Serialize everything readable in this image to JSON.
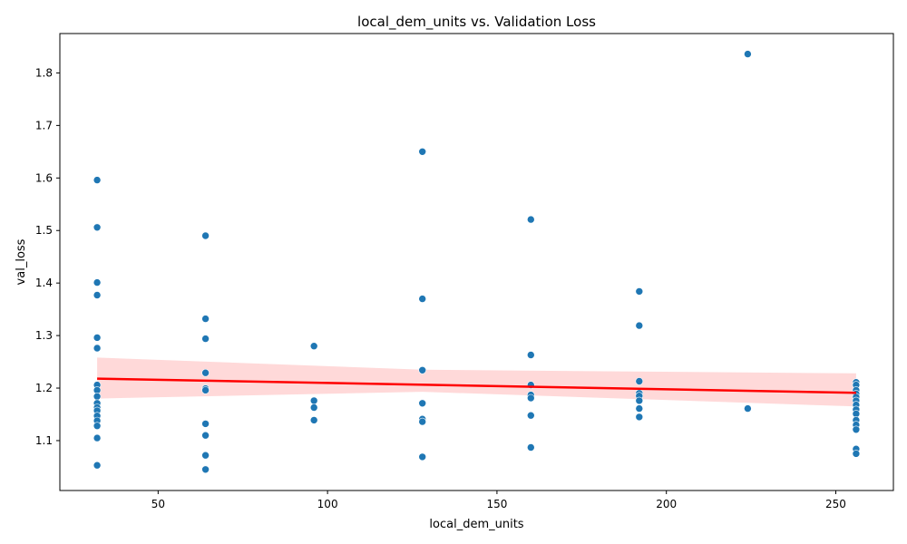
{
  "chart_data": {
    "type": "scatter",
    "title": "local_dem_units vs. Validation Loss",
    "xlabel": "local_dem_units",
    "ylabel": "val_loss",
    "xlim": [
      21,
      267
    ],
    "ylim": [
      1.005,
      1.875
    ],
    "x_ticks": [
      50,
      100,
      150,
      200,
      250
    ],
    "x_tick_labels": [
      "50",
      "100",
      "150",
      "200",
      "250"
    ],
    "y_ticks": [
      1.1,
      1.2,
      1.3,
      1.4,
      1.5,
      1.6,
      1.7,
      1.8
    ],
    "y_tick_labels": [
      "1.1",
      "1.2",
      "1.3",
      "1.4",
      "1.5",
      "1.6",
      "1.7",
      "1.8"
    ],
    "grid": false,
    "colors": {
      "points": "#1f77b4",
      "regression_line": "#ff0000",
      "confidence_band": "#ffcccc"
    },
    "points": [
      {
        "x": 32,
        "y": 1.596
      },
      {
        "x": 32,
        "y": 1.506
      },
      {
        "x": 32,
        "y": 1.401
      },
      {
        "x": 32,
        "y": 1.377
      },
      {
        "x": 32,
        "y": 1.296
      },
      {
        "x": 32,
        "y": 1.276
      },
      {
        "x": 32,
        "y": 1.206
      },
      {
        "x": 32,
        "y": 1.196
      },
      {
        "x": 32,
        "y": 1.184
      },
      {
        "x": 32,
        "y": 1.171
      },
      {
        "x": 32,
        "y": 1.163
      },
      {
        "x": 32,
        "y": 1.157
      },
      {
        "x": 32,
        "y": 1.147
      },
      {
        "x": 32,
        "y": 1.138
      },
      {
        "x": 32,
        "y": 1.128
      },
      {
        "x": 32,
        "y": 1.105
      },
      {
        "x": 32,
        "y": 1.053
      },
      {
        "x": 64,
        "y": 1.49
      },
      {
        "x": 64,
        "y": 1.332
      },
      {
        "x": 64,
        "y": 1.294
      },
      {
        "x": 64,
        "y": 1.229
      },
      {
        "x": 64,
        "y": 1.199
      },
      {
        "x": 64,
        "y": 1.196
      },
      {
        "x": 64,
        "y": 1.132
      },
      {
        "x": 64,
        "y": 1.11
      },
      {
        "x": 64,
        "y": 1.072
      },
      {
        "x": 64,
        "y": 1.045
      },
      {
        "x": 96,
        "y": 1.28
      },
      {
        "x": 96,
        "y": 1.176
      },
      {
        "x": 96,
        "y": 1.163
      },
      {
        "x": 96,
        "y": 1.139
      },
      {
        "x": 128,
        "y": 1.65
      },
      {
        "x": 128,
        "y": 1.37
      },
      {
        "x": 128,
        "y": 1.234
      },
      {
        "x": 128,
        "y": 1.171
      },
      {
        "x": 128,
        "y": 1.141
      },
      {
        "x": 128,
        "y": 1.136
      },
      {
        "x": 128,
        "y": 1.069
      },
      {
        "x": 160,
        "y": 1.521
      },
      {
        "x": 160,
        "y": 1.263
      },
      {
        "x": 160,
        "y": 1.206
      },
      {
        "x": 160,
        "y": 1.187
      },
      {
        "x": 160,
        "y": 1.181
      },
      {
        "x": 160,
        "y": 1.148
      },
      {
        "x": 160,
        "y": 1.087
      },
      {
        "x": 192,
        "y": 1.384
      },
      {
        "x": 192,
        "y": 1.319
      },
      {
        "x": 192,
        "y": 1.213
      },
      {
        "x": 192,
        "y": 1.19
      },
      {
        "x": 192,
        "y": 1.185
      },
      {
        "x": 192,
        "y": 1.176
      },
      {
        "x": 192,
        "y": 1.161
      },
      {
        "x": 192,
        "y": 1.145
      },
      {
        "x": 224,
        "y": 1.836
      },
      {
        "x": 224,
        "y": 1.161
      },
      {
        "x": 256,
        "y": 1.211
      },
      {
        "x": 256,
        "y": 1.206
      },
      {
        "x": 256,
        "y": 1.196
      },
      {
        "x": 256,
        "y": 1.189
      },
      {
        "x": 256,
        "y": 1.183
      },
      {
        "x": 256,
        "y": 1.176
      },
      {
        "x": 256,
        "y": 1.168
      },
      {
        "x": 256,
        "y": 1.159
      },
      {
        "x": 256,
        "y": 1.151
      },
      {
        "x": 256,
        "y": 1.139
      },
      {
        "x": 256,
        "y": 1.13
      },
      {
        "x": 256,
        "y": 1.121
      },
      {
        "x": 256,
        "y": 1.084
      },
      {
        "x": 256,
        "y": 1.075
      }
    ],
    "regression": {
      "x": [
        32,
        256
      ],
      "y": [
        1.218,
        1.191
      ],
      "ci_upper": [
        1.258,
        1.228
      ],
      "ci_lower": [
        1.18,
        1.165
      ],
      "ci_mid_x": 128,
      "ci_mid_upper": 1.235,
      "ci_mid_lower": 1.193
    }
  }
}
